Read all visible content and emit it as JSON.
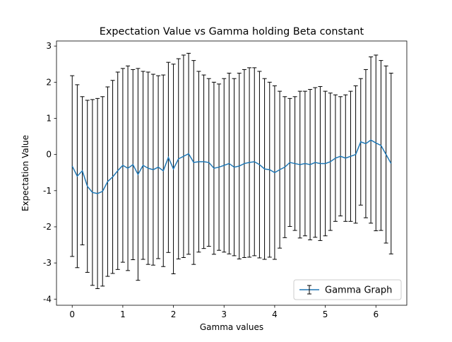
{
  "chart_data": {
    "type": "errorbar",
    "title": "Expectation Value vs Gamma holding Beta constant",
    "x_label": "Gamma values",
    "y_label": "Expectation Value",
    "x": [
      0,
      0.1,
      0.2,
      0.3,
      0.4,
      0.5,
      0.6,
      0.7,
      0.8,
      0.9,
      1.0,
      1.1,
      1.2,
      1.3,
      1.4,
      1.5,
      1.6,
      1.7,
      1.8,
      1.9,
      2.0,
      2.1,
      2.2,
      2.3,
      2.4,
      2.5,
      2.6,
      2.7,
      2.8,
      2.9,
      3.0,
      3.1,
      3.2,
      3.3,
      3.4,
      3.5,
      3.6,
      3.7,
      3.8,
      3.9,
      4.0,
      4.1,
      4.2,
      4.3,
      4.4,
      4.5,
      4.6,
      4.7,
      4.8,
      4.9,
      5.0,
      5.1,
      5.2,
      5.3,
      5.4,
      5.5,
      5.6,
      5.7,
      5.8,
      5.9,
      6.0,
      6.1,
      6.2,
      6.3
    ],
    "series": [
      {
        "name": "Gamma Graph",
        "color": "#1f77b4",
        "error_color": "#000000",
        "values": [
          -0.32,
          -0.6,
          -0.45,
          -0.88,
          -1.05,
          -1.08,
          -1.02,
          -0.75,
          -0.62,
          -0.45,
          -0.3,
          -0.38,
          -0.28,
          -0.55,
          -0.3,
          -0.38,
          -0.42,
          -0.35,
          -0.45,
          -0.08,
          -0.4,
          -0.12,
          -0.05,
          0.02,
          -0.22,
          -0.2,
          -0.2,
          -0.22,
          -0.38,
          -0.35,
          -0.3,
          -0.25,
          -0.35,
          -0.32,
          -0.25,
          -0.22,
          -0.2,
          -0.28,
          -0.4,
          -0.42,
          -0.5,
          -0.42,
          -0.35,
          -0.22,
          -0.25,
          -0.28,
          -0.25,
          -0.28,
          -0.22,
          -0.25,
          -0.25,
          -0.2,
          -0.1,
          -0.05,
          -0.1,
          -0.05,
          0.0,
          0.35,
          0.3,
          0.4,
          0.32,
          0.25,
          0.0,
          -0.25
        ],
        "errors": [
          2.5,
          2.53,
          2.05,
          2.38,
          2.57,
          2.63,
          2.62,
          2.62,
          2.67,
          2.73,
          2.68,
          2.83,
          2.63,
          2.93,
          2.6,
          2.66,
          2.64,
          2.53,
          2.65,
          2.63,
          2.9,
          2.77,
          2.8,
          2.78,
          2.82,
          2.5,
          2.4,
          2.32,
          2.38,
          2.3,
          2.4,
          2.5,
          2.45,
          2.57,
          2.6,
          2.62,
          2.6,
          2.58,
          2.5,
          2.42,
          2.4,
          2.17,
          1.95,
          1.77,
          1.85,
          2.03,
          2.0,
          2.08,
          2.07,
          2.13,
          2.0,
          1.9,
          1.75,
          1.65,
          1.75,
          1.8,
          1.9,
          1.75,
          2.05,
          2.3,
          2.43,
          2.35,
          2.45,
          2.5
        ]
      }
    ],
    "xlim": [
      -0.31,
      6.61
    ],
    "ylim": [
      -4.17,
      3.14
    ],
    "xticks": [
      0,
      1,
      2,
      3,
      4,
      5,
      6
    ],
    "yticks": [
      -4,
      -3,
      -2,
      -1,
      0,
      1,
      2,
      3
    ],
    "legend": "lower right"
  }
}
